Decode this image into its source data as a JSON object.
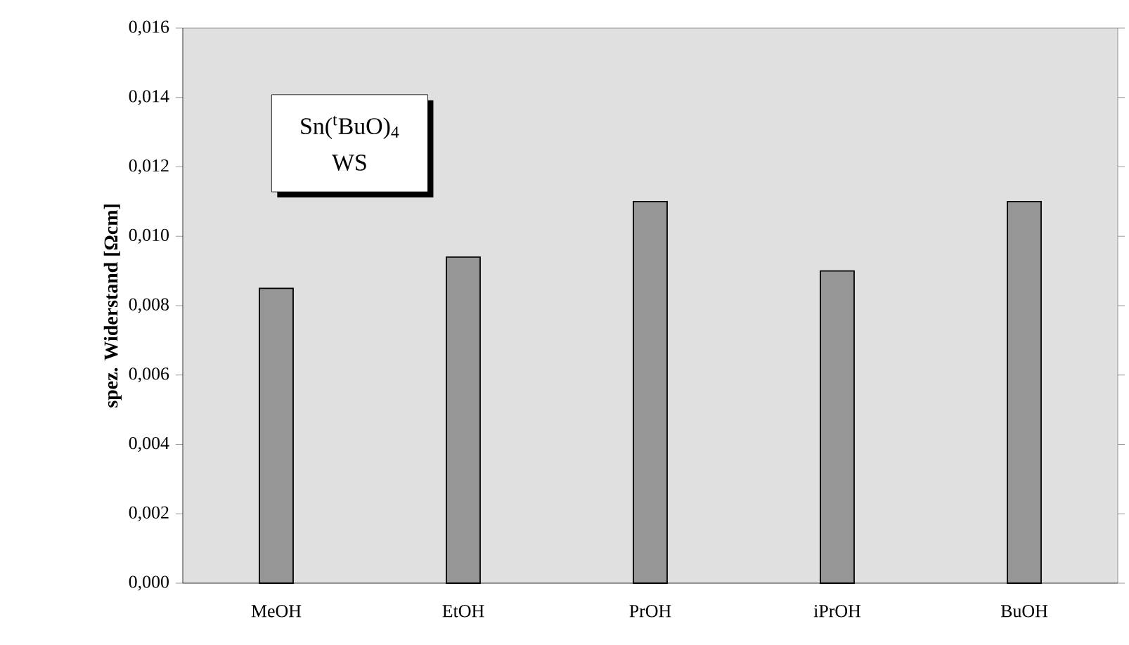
{
  "chart_data": {
    "type": "bar",
    "ylabel": "spez. Widerstand [Ωcm]",
    "categories": [
      "MeOH",
      "EtOH",
      "PrOH",
      "iPrOH",
      "BuOH"
    ],
    "values": [
      0.0085,
      0.0094,
      0.011,
      0.009,
      0.011
    ],
    "color": "#969696",
    "ylim": [
      0,
      0.016
    ],
    "yticks": [
      {
        "value": 0,
        "label": "0,000"
      },
      {
        "value": 0.002,
        "label": "0,002"
      },
      {
        "value": 0.004,
        "label": "0,004"
      },
      {
        "value": 0.006,
        "label": "0,006"
      },
      {
        "value": 0.008,
        "label": "0,008"
      },
      {
        "value": 0.01,
        "label": "0,010"
      },
      {
        "value": 0.012,
        "label": "0,012"
      },
      {
        "value": 0.014,
        "label": "0,014"
      },
      {
        "value": 0.016,
        "label": "0,016"
      }
    ],
    "annotations": [
      "Sn($^{t}$BuO)$_{4}$",
      "WS"
    ],
    "grid": false
  }
}
